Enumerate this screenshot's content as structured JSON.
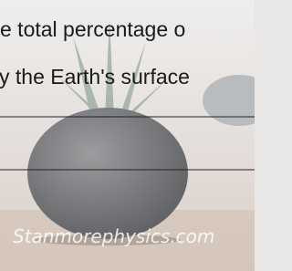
{
  "document": {
    "lines": [
      "e total percentage o",
      "y the Earth's surface"
    ],
    "watermark": "Stanmorephysics.com"
  }
}
